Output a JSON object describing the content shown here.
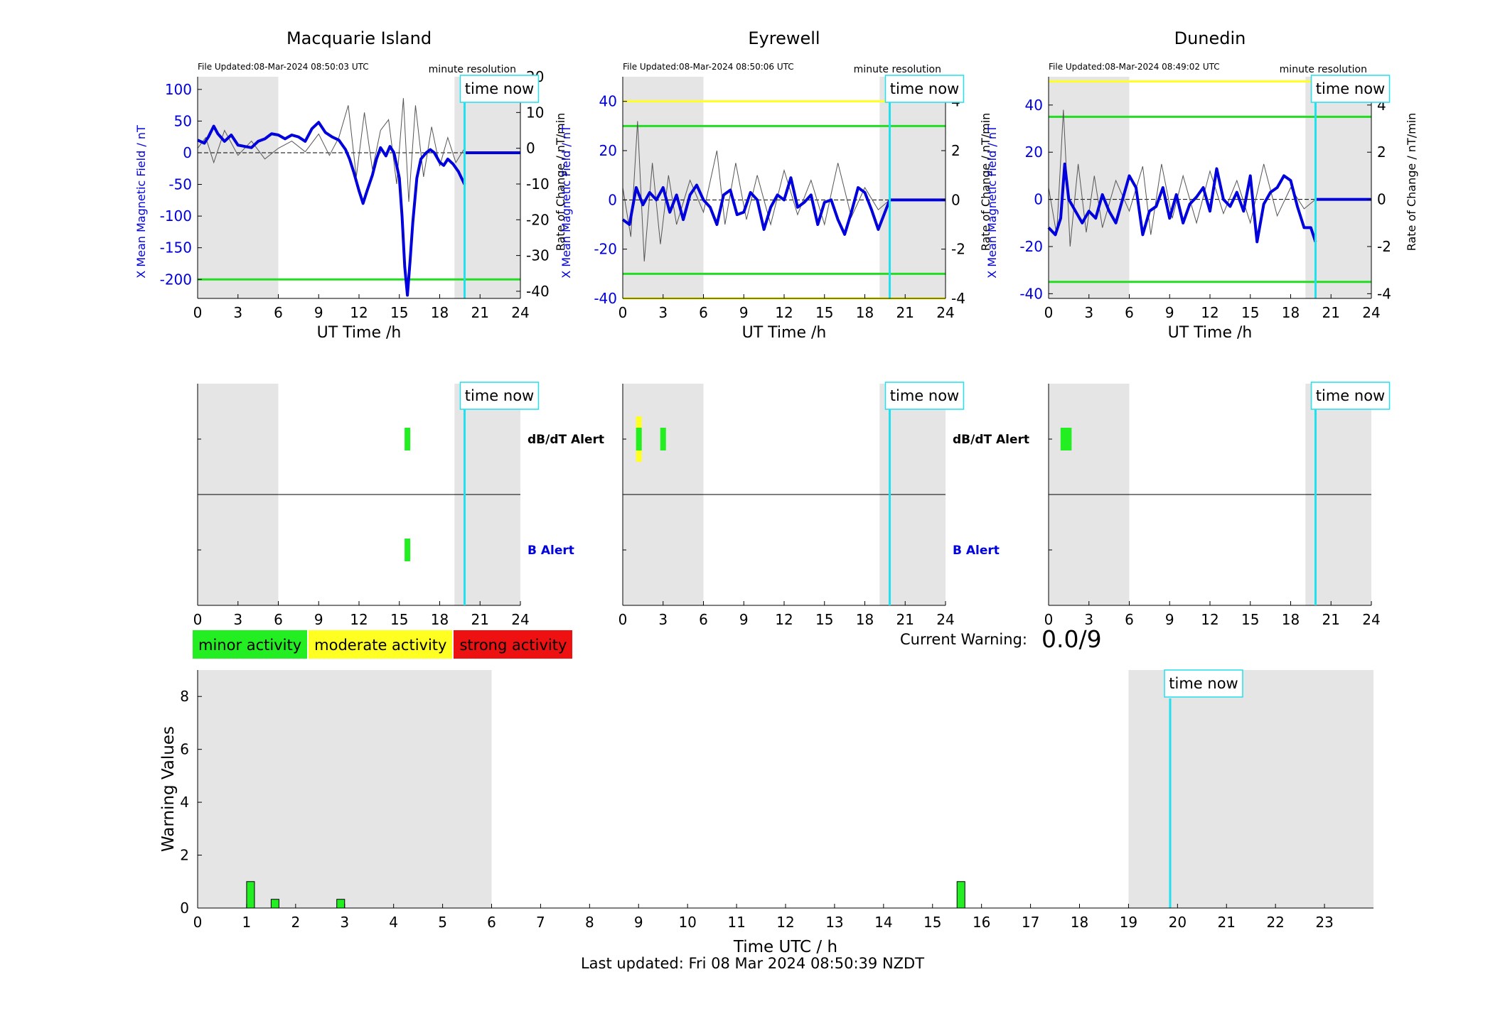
{
  "figure": {
    "last_updated": "Last updated: Fri 08 Mar 2024 08:50:39 NZDT",
    "current_warning_label": "Current Warning:",
    "current_warning_value": "0.0/9",
    "time_now_label": "time now",
    "shading_color": "#e5e5e5",
    "time_now_color": "#22e0ee",
    "field_color": "#0000dd",
    "thresh_minor_color": "#22dd22",
    "thresh_moderate_color": "#ffff22",
    "legend": [
      {
        "label": "minor activity",
        "color": "#22ee22"
      },
      {
        "label": "moderate activity",
        "color": "#ffff22"
      },
      {
        "label": "strong activity",
        "color": "#ee1111"
      }
    ]
  },
  "chart_data": [
    {
      "type": "line",
      "title": "Macquarie Island",
      "file_updated": "File Updated:08-Mar-2024 08:50:03 UTC",
      "resolution_note": "minute resolution",
      "xlabel": "UT Time /h",
      "ylabel_left": "X Mean Magnetic Field / nT",
      "ylabel_right": "Rate of Change / nT/min",
      "xlim": [
        0,
        24
      ],
      "xticks": [
        0,
        3,
        6,
        9,
        12,
        15,
        18,
        21,
        24
      ],
      "ylim_left": [
        -230,
        120
      ],
      "yticks_left": [
        100,
        50,
        0,
        -50,
        -100,
        -150,
        -200
      ],
      "ylim_right": [
        -42,
        20
      ],
      "yticks_right": [
        20,
        10,
        0,
        -10,
        -20,
        -30,
        -40
      ],
      "shaded_ranges": [
        [
          0,
          6
        ],
        [
          19.1,
          24
        ]
      ],
      "time_now": 19.85,
      "thresholds": [
        {
          "value": -200,
          "color": "green"
        }
      ],
      "series": [
        {
          "kind": "field",
          "x": [
            0,
            0.5,
            0.8,
            1.2,
            1.5,
            2,
            2.5,
            3,
            3.5,
            4,
            4.5,
            5,
            5.5,
            6,
            6.5,
            7,
            7.5,
            8,
            8.5,
            9,
            9.5,
            10,
            10.5,
            11,
            11.3,
            11.6,
            12,
            12.3,
            12.6,
            13,
            13.3,
            13.6,
            14,
            14.3,
            14.6,
            15,
            15.2,
            15.4,
            15.6,
            15.8,
            16,
            16.3,
            16.6,
            17,
            17.3,
            17.6,
            18,
            18.3,
            18.6,
            19,
            19.4,
            19.85
          ],
          "y": [
            20,
            15,
            25,
            42,
            30,
            18,
            28,
            12,
            10,
            8,
            18,
            22,
            30,
            28,
            22,
            28,
            25,
            18,
            38,
            48,
            32,
            25,
            20,
            5,
            -10,
            -30,
            -60,
            -80,
            -60,
            -35,
            -10,
            8,
            -5,
            10,
            0,
            -40,
            -100,
            -180,
            -225,
            -170,
            -110,
            -40,
            -10,
            0,
            5,
            0,
            -15,
            -20,
            -10,
            -18,
            -30,
            -50
          ]
        },
        {
          "kind": "rate",
          "x": [
            0,
            0.6,
            1.2,
            2,
            3,
            4,
            5,
            6,
            7,
            8,
            9,
            9.8,
            10.5,
            11.2,
            11.8,
            12.4,
            13,
            13.6,
            14.2,
            14.8,
            15.3,
            15.7,
            16.2,
            16.8,
            17.4,
            18,
            18.6,
            19.2,
            19.85
          ],
          "y": [
            0,
            3,
            -4,
            5,
            -2,
            2,
            -3,
            0,
            2,
            -1,
            4,
            -2,
            3,
            12,
            -8,
            10,
            -6,
            5,
            8,
            -10,
            14,
            -15,
            12,
            -8,
            6,
            -5,
            3,
            -4,
            0
          ]
        }
      ]
    },
    {
      "type": "line",
      "title": "Eyrewell",
      "file_updated": "File Updated:08-Mar-2024 08:50:06 UTC",
      "resolution_note": "minute resolution",
      "xlabel": "UT Time /h",
      "ylabel_left": "X Mean Magnetic Field / nT",
      "ylabel_right": "Rate of Change / nT/min",
      "xlim": [
        0,
        24
      ],
      "xticks": [
        0,
        3,
        6,
        9,
        12,
        15,
        18,
        21,
        24
      ],
      "ylim_left": [
        -40,
        50
      ],
      "yticks_left": [
        40,
        20,
        0,
        -20,
        -40
      ],
      "ylim_right": [
        -4,
        5
      ],
      "yticks_right": [
        4,
        2,
        0,
        -2,
        -4
      ],
      "shaded_ranges": [
        [
          0,
          6
        ],
        [
          19.1,
          24
        ]
      ],
      "time_now": 19.85,
      "thresholds": [
        {
          "value": 40,
          "color": "yellow"
        },
        {
          "value": 30,
          "color": "green"
        },
        {
          "value": -30,
          "color": "green"
        },
        {
          "value": -40,
          "color": "yellow"
        }
      ],
      "series": [
        {
          "kind": "field",
          "x": [
            0,
            0.5,
            1,
            1.5,
            2,
            2.5,
            3,
            3.5,
            4,
            4.5,
            5,
            5.5,
            6,
            6.5,
            7,
            7.5,
            8,
            8.5,
            9,
            9.5,
            10,
            10.5,
            11,
            11.5,
            12,
            12.5,
            13,
            13.5,
            14,
            14.5,
            15,
            15.5,
            16,
            16.5,
            17,
            17.5,
            18,
            18.5,
            19,
            19.85
          ],
          "y": [
            -8,
            -10,
            5,
            -2,
            3,
            0,
            5,
            -5,
            2,
            -8,
            2,
            6,
            0,
            -3,
            -10,
            2,
            4,
            -6,
            -5,
            3,
            0,
            -12,
            -3,
            2,
            0,
            9,
            -3,
            -1,
            2,
            -10,
            -1,
            0,
            -8,
            -14,
            -5,
            5,
            3,
            -4,
            -12,
            0
          ]
        },
        {
          "kind": "rate",
          "x": [
            0,
            0.6,
            1.1,
            1.6,
            2.2,
            2.8,
            3.4,
            4,
            5,
            6,
            7,
            7.6,
            8.4,
            9.2,
            10,
            11,
            12,
            13,
            14,
            15,
            16,
            17,
            18,
            19,
            19.85
          ],
          "y": [
            0.5,
            -1.5,
            3.2,
            -2.5,
            1.5,
            -1.8,
            1,
            -1,
            0.8,
            -0.5,
            2,
            -1,
            1.5,
            -0.8,
            1,
            -1,
            1.2,
            -0.6,
            0.8,
            -1,
            1.5,
            -0.7,
            0.5,
            -0.4,
            0
          ]
        }
      ]
    },
    {
      "type": "line",
      "title": "Dunedin",
      "file_updated": "File Updated:08-Mar-2024 08:49:02 UTC",
      "resolution_note": "minute resolution",
      "xlabel": "UT Time /h",
      "ylabel_left": "X Mean Magnetic Field / nT",
      "ylabel_right": "Rate of Change / nT/min",
      "xlim": [
        0,
        24
      ],
      "xticks": [
        0,
        3,
        6,
        9,
        12,
        15,
        18,
        21,
        24
      ],
      "ylim_left": [
        -42,
        52
      ],
      "yticks_left": [
        40,
        20,
        0,
        -20,
        -40
      ],
      "ylim_right": [
        -4.2,
        5.2
      ],
      "yticks_right": [
        4,
        2,
        0,
        -2,
        -4
      ],
      "shaded_ranges": [
        [
          0,
          6
        ],
        [
          19.1,
          24
        ]
      ],
      "time_now": 19.85,
      "thresholds": [
        {
          "value": 50,
          "color": "yellow"
        },
        {
          "value": 35,
          "color": "green"
        },
        {
          "value": -35,
          "color": "green"
        }
      ],
      "series": [
        {
          "kind": "field",
          "x": [
            0,
            0.5,
            0.9,
            1.2,
            1.5,
            2,
            2.5,
            3,
            3.5,
            4,
            4.5,
            5,
            5.5,
            6,
            6.5,
            7,
            7.5,
            8,
            8.5,
            9,
            9.5,
            10,
            10.5,
            11,
            11.5,
            12,
            12.5,
            13,
            13.5,
            14,
            14.5,
            15,
            15.5,
            16,
            16.5,
            17,
            17.5,
            18,
            18.5,
            19,
            19.5,
            19.85
          ],
          "y": [
            -12,
            -15,
            -8,
            15,
            0,
            -5,
            -10,
            -5,
            -8,
            2,
            -5,
            -10,
            0,
            10,
            5,
            -15,
            -5,
            -3,
            5,
            -8,
            2,
            -10,
            -2,
            1,
            5,
            -5,
            13,
            0,
            -3,
            3,
            -5,
            10,
            -18,
            -2,
            3,
            5,
            10,
            8,
            -3,
            -12,
            -12,
            -18
          ]
        },
        {
          "kind": "rate",
          "x": [
            0,
            0.6,
            1.1,
            1.6,
            2.2,
            2.8,
            3.4,
            4,
            5,
            6,
            7,
            7.6,
            8.4,
            9.2,
            10,
            11,
            12,
            13,
            14,
            15,
            16,
            17,
            18,
            19,
            19.85
          ],
          "y": [
            0.5,
            -1.5,
            3.8,
            -2,
            1.5,
            -1.4,
            1,
            -1.2,
            0.8,
            -0.5,
            1.4,
            -1.5,
            1.5,
            -0.8,
            1,
            -1,
            1.2,
            -0.6,
            0.8,
            -1,
            1.5,
            -0.7,
            0.5,
            -0.4,
            0
          ]
        }
      ]
    },
    {
      "type": "bar",
      "title": "",
      "panel": "alerts",
      "station": "Macquarie Island",
      "xlim": [
        0,
        24
      ],
      "xticks": [
        0,
        3,
        6,
        9,
        12,
        15,
        18,
        21,
        24
      ],
      "rows": [
        "dB/dT Alert",
        "B Alert"
      ],
      "shaded_ranges": [
        [
          0,
          6
        ],
        [
          19.1,
          24
        ]
      ],
      "time_now": 19.85,
      "alerts": [
        {
          "row": "dB/dT Alert",
          "x": 15.6,
          "level": "minor"
        },
        {
          "row": "B Alert",
          "x": 15.6,
          "level": "minor"
        }
      ]
    },
    {
      "type": "bar",
      "title": "",
      "panel": "alerts",
      "station": "Eyrewell",
      "xlim": [
        0,
        24
      ],
      "xticks": [
        0,
        3,
        6,
        9,
        12,
        15,
        18,
        21,
        24
      ],
      "rows": [
        "dB/dT Alert",
        "B Alert"
      ],
      "shaded_ranges": [
        [
          0,
          6
        ],
        [
          19.1,
          24
        ]
      ],
      "time_now": 19.85,
      "alerts": [
        {
          "row": "dB/dT Alert",
          "x": 1.2,
          "level": "moderate"
        },
        {
          "row": "dB/dT Alert",
          "x": 3.0,
          "level": "minor"
        }
      ]
    },
    {
      "type": "bar",
      "title": "",
      "panel": "alerts",
      "station": "Dunedin",
      "xlim": [
        0,
        24
      ],
      "xticks": [
        0,
        3,
        6,
        9,
        12,
        15,
        18,
        21,
        24
      ],
      "rows": [
        "dB/dT Alert",
        "B Alert"
      ],
      "shaded_ranges": [
        [
          0,
          6
        ],
        [
          19.1,
          24
        ]
      ],
      "time_now": 19.85,
      "alerts": [
        {
          "row": "dB/dT Alert",
          "x": 1.1,
          "level": "minor"
        },
        {
          "row": "dB/dT Alert",
          "x": 1.5,
          "level": "minor"
        }
      ]
    },
    {
      "type": "bar",
      "title": "",
      "panel": "warnings",
      "xlabel": "Time UTC / h",
      "ylabel": "Warning Values",
      "xlim": [
        0,
        24
      ],
      "xticks": [
        0,
        1,
        2,
        3,
        4,
        5,
        6,
        7,
        8,
        9,
        10,
        11,
        12,
        13,
        14,
        15,
        16,
        17,
        18,
        19,
        20,
        21,
        22,
        23
      ],
      "ylim": [
        0,
        9
      ],
      "yticks": [
        0,
        2,
        4,
        6,
        8
      ],
      "shaded_ranges": [
        [
          0,
          6
        ],
        [
          19,
          24
        ]
      ],
      "time_now": 19.85,
      "x": [
        1.08,
        1.58,
        2.92,
        15.58
      ],
      "values": [
        1.0,
        0.33,
        0.33,
        1.0
      ],
      "bar_width": 0.16
    }
  ]
}
